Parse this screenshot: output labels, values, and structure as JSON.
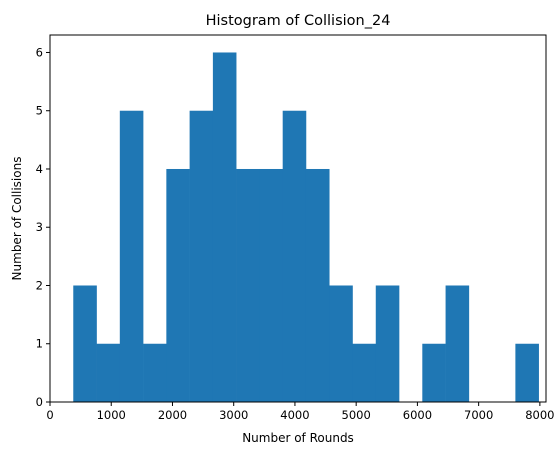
{
  "chart_data": {
    "type": "bar",
    "title": "Histogram of Collision_24",
    "xlabel": "Number of Rounds",
    "ylabel": "Number of Collisions",
    "xlim": [
      0,
      8100
    ],
    "ylim": [
      0,
      6.3
    ],
    "xticks": [
      0,
      1000,
      2000,
      3000,
      4000,
      5000,
      6000,
      7000,
      8000
    ],
    "yticks": [
      0,
      1,
      2,
      3,
      4,
      5,
      6
    ],
    "bin_edges": [
      380,
      760,
      1140,
      1520,
      1900,
      2280,
      2660,
      3040,
      3420,
      3800,
      4180,
      4560,
      4940,
      5320,
      5700,
      6080,
      6460,
      6840,
      7220,
      7600,
      7980
    ],
    "values": [
      2,
      1,
      5,
      1,
      4,
      5,
      6,
      4,
      4,
      5,
      4,
      2,
      1,
      2,
      0,
      1,
      2,
      0,
      0,
      1
    ],
    "bar_color": "#1f77b4",
    "grid": false,
    "legend": false
  }
}
